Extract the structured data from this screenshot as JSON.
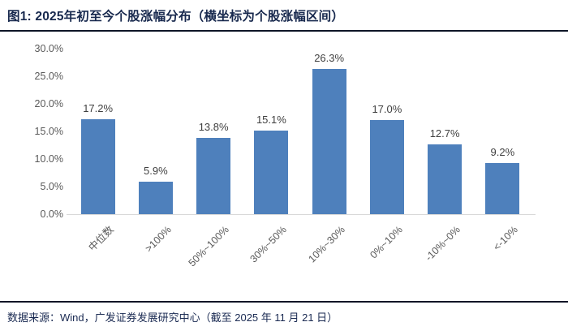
{
  "header": {
    "title": "图1:  2025年初至今个股涨幅分布（横坐标为个股涨幅区间）"
  },
  "chart_data": {
    "type": "bar",
    "title": "2025年初至今个股涨幅分布（横坐标为个股涨幅区间）",
    "categories": [
      "中位数",
      ">100%",
      "50%~100%",
      "30%~50%",
      "10%~30%",
      "0%~10%",
      "-10%~0%",
      "<-10%"
    ],
    "values": [
      17.2,
      5.9,
      13.8,
      15.1,
      26.3,
      17.0,
      12.7,
      9.2
    ],
    "value_labels": [
      "17.2%",
      "5.9%",
      "13.8%",
      "15.1%",
      "26.3%",
      "17.0%",
      "12.7%",
      "9.2%"
    ],
    "xlabel": "",
    "ylabel": "",
    "ylim": [
      0,
      30
    ],
    "ytick_labels": [
      "30.0%",
      "25.0%",
      "20.0%",
      "15.0%",
      "10.0%",
      "5.0%",
      "0.0%"
    ],
    "grid": false,
    "legend": null,
    "bar_color": "#4e80bc"
  },
  "footer": {
    "source": "数据来源：Wind，广发证券发展研究中心（截至 2025 年 11 月 21 日）"
  },
  "colors": {
    "title_text": "#18294e",
    "axis_text": "#595959",
    "value_label_text": "#3f3f3f",
    "rule": "#0d1526",
    "baseline": "#d9d9d9",
    "bar": "#4e80bc"
  }
}
